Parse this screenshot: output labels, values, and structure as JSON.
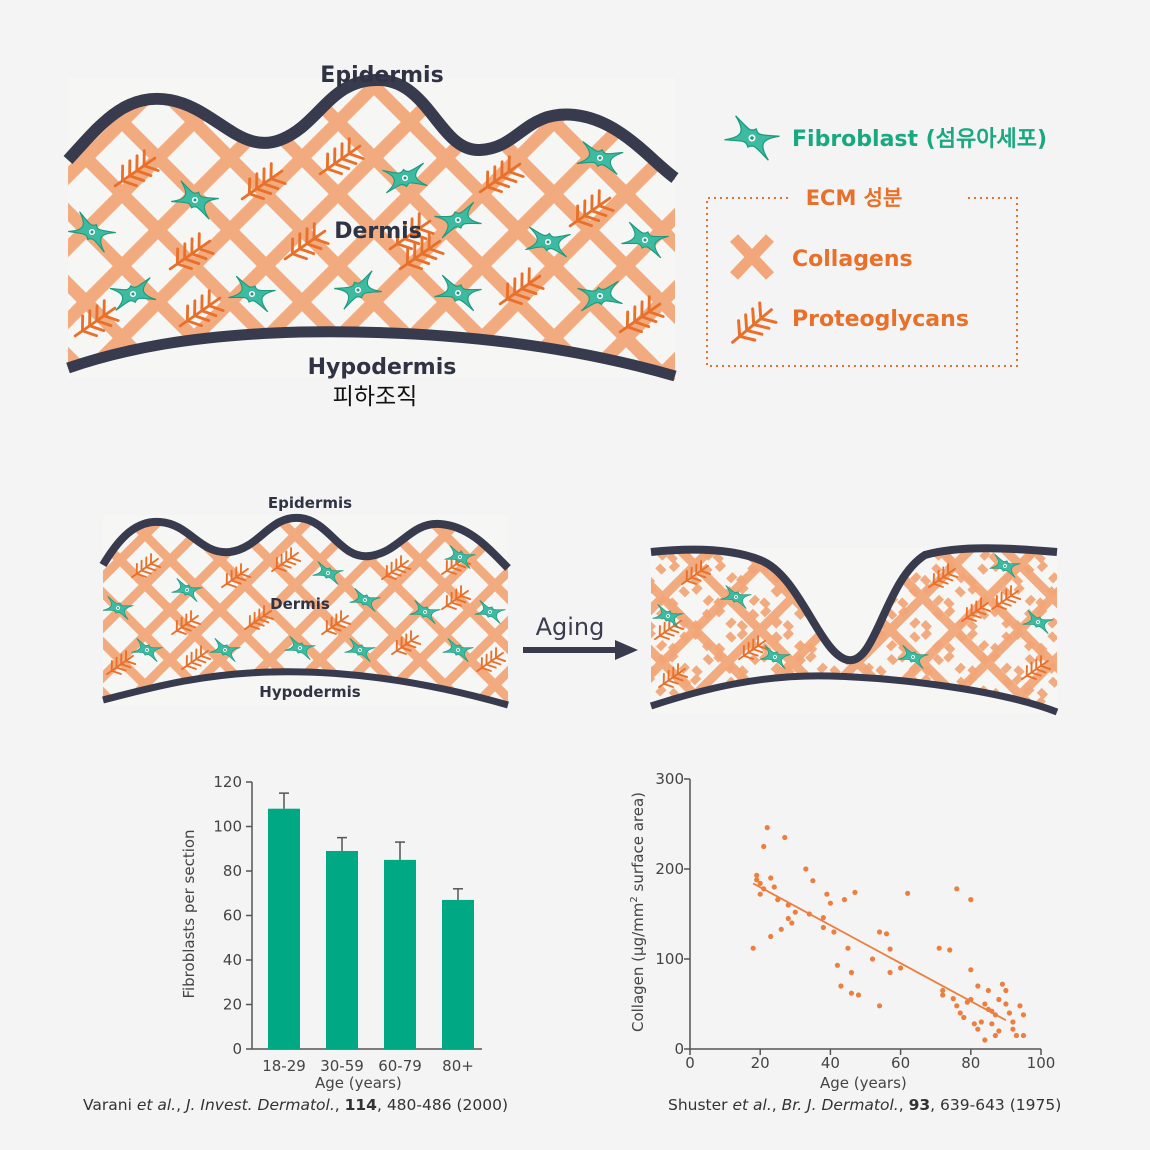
{
  "colors": {
    "collagen": "#f2a679",
    "collagen_dark": "#ec7f3f",
    "proteoglycan": "#e8702a",
    "fibroblast": "#3dbba0",
    "fibroblast_dark": "#1f9a7e",
    "border": "#383b4d",
    "bar": "#00a884",
    "scatter": "#ec7f3f",
    "legend_text_green": "#19a880",
    "legend_text_orange": "#e8702a"
  },
  "top_diagram": {
    "epidermis": "Epidermis",
    "dermis": "Dermis",
    "hypodermis": "Hypodermis",
    "hypodermis_korean": "피하조직"
  },
  "legend": {
    "fibroblast": "Fibroblast (섬유아세포)",
    "ecm_title": "ECM 성분",
    "collagens": "Collagens",
    "proteoglycans": "Proteoglycans"
  },
  "aging_diagram": {
    "epidermis": "Epidermis",
    "dermis": "Dermis",
    "hypodermis": "Hypodermis",
    "arrow_label": "Aging"
  },
  "chart_data": [
    {
      "type": "bar",
      "categories": [
        "18-29",
        "30-59",
        "60-79",
        "80+"
      ],
      "values": [
        108,
        89,
        85,
        67
      ],
      "errors": [
        7,
        6,
        8,
        5
      ],
      "ylabel": "Fibroblasts per section",
      "xlabel": "Age (years)",
      "ylim": [
        0,
        120
      ],
      "yticks": [
        0,
        20,
        40,
        60,
        80,
        100,
        120
      ],
      "citation": {
        "authors": "Varani ",
        "etal": "et al.",
        "journal_prefix": ", ",
        "journal": "J. Invest. Dermatol.",
        "sep": ", ",
        "volume": "114",
        "rest": ", 480-486 (2000)"
      }
    },
    {
      "type": "scatter",
      "xlabel": "Age (years)",
      "ylabel_parts": [
        "Collagen (μg/mm",
        "2",
        " surface area)"
      ],
      "xlim": [
        0,
        100
      ],
      "ylim": [
        0,
        300
      ],
      "xticks": [
        0,
        20,
        40,
        60,
        80,
        100
      ],
      "yticks": [
        0,
        100,
        200,
        300
      ],
      "trend_line": {
        "x": [
          18,
          90
        ],
        "y": [
          184,
          32
        ]
      },
      "points": [
        [
          18,
          112
        ],
        [
          19,
          193
        ],
        [
          19,
          188
        ],
        [
          20,
          172
        ],
        [
          20,
          184
        ],
        [
          21,
          225
        ],
        [
          21,
          178
        ],
        [
          22,
          246
        ],
        [
          23,
          125
        ],
        [
          23,
          190
        ],
        [
          24,
          180
        ],
        [
          25,
          166
        ],
        [
          26,
          133
        ],
        [
          27,
          235
        ],
        [
          28,
          145
        ],
        [
          28,
          160
        ],
        [
          29,
          140
        ],
        [
          30,
          152
        ],
        [
          33,
          200
        ],
        [
          34,
          150
        ],
        [
          35,
          187
        ],
        [
          38,
          146
        ],
        [
          38,
          135
        ],
        [
          39,
          172
        ],
        [
          40,
          162
        ],
        [
          41,
          130
        ],
        [
          42,
          93
        ],
        [
          43,
          70
        ],
        [
          44,
          166
        ],
        [
          45,
          112
        ],
        [
          46,
          85
        ],
        [
          46,
          62
        ],
        [
          47,
          174
        ],
        [
          48,
          60
        ],
        [
          52,
          100
        ],
        [
          54,
          48
        ],
        [
          54,
          130
        ],
        [
          56,
          128
        ],
        [
          57,
          111
        ],
        [
          57,
          85
        ],
        [
          60,
          90
        ],
        [
          62,
          173
        ],
        [
          71,
          112
        ],
        [
          72,
          65
        ],
        [
          72,
          60
        ],
        [
          74,
          110
        ],
        [
          75,
          56
        ],
        [
          76,
          178
        ],
        [
          76,
          48
        ],
        [
          77,
          40
        ],
        [
          78,
          35
        ],
        [
          79,
          52
        ],
        [
          80,
          88
        ],
        [
          80,
          166
        ],
        [
          80,
          55
        ],
        [
          81,
          28
        ],
        [
          82,
          70
        ],
        [
          82,
          22
        ],
        [
          83,
          30
        ],
        [
          84,
          50
        ],
        [
          84,
          10
        ],
        [
          85,
          44
        ],
        [
          85,
          65
        ],
        [
          86,
          42
        ],
        [
          86,
          28
        ],
        [
          87,
          38
        ],
        [
          87,
          15
        ],
        [
          88,
          20
        ],
        [
          88,
          55
        ],
        [
          89,
          72
        ],
        [
          90,
          50
        ],
        [
          90,
          65
        ],
        [
          91,
          40
        ],
        [
          92,
          30
        ],
        [
          92,
          22
        ],
        [
          93,
          15
        ],
        [
          94,
          48
        ],
        [
          95,
          38
        ],
        [
          95,
          15
        ]
      ],
      "citation": {
        "authors": "Shuster ",
        "etal": "et al.",
        "journal_prefix": ", ",
        "journal": "Br. J. Dermatol.",
        "sep": ", ",
        "volume": "93",
        "rest": ", 639-643 (1975)"
      }
    }
  ]
}
